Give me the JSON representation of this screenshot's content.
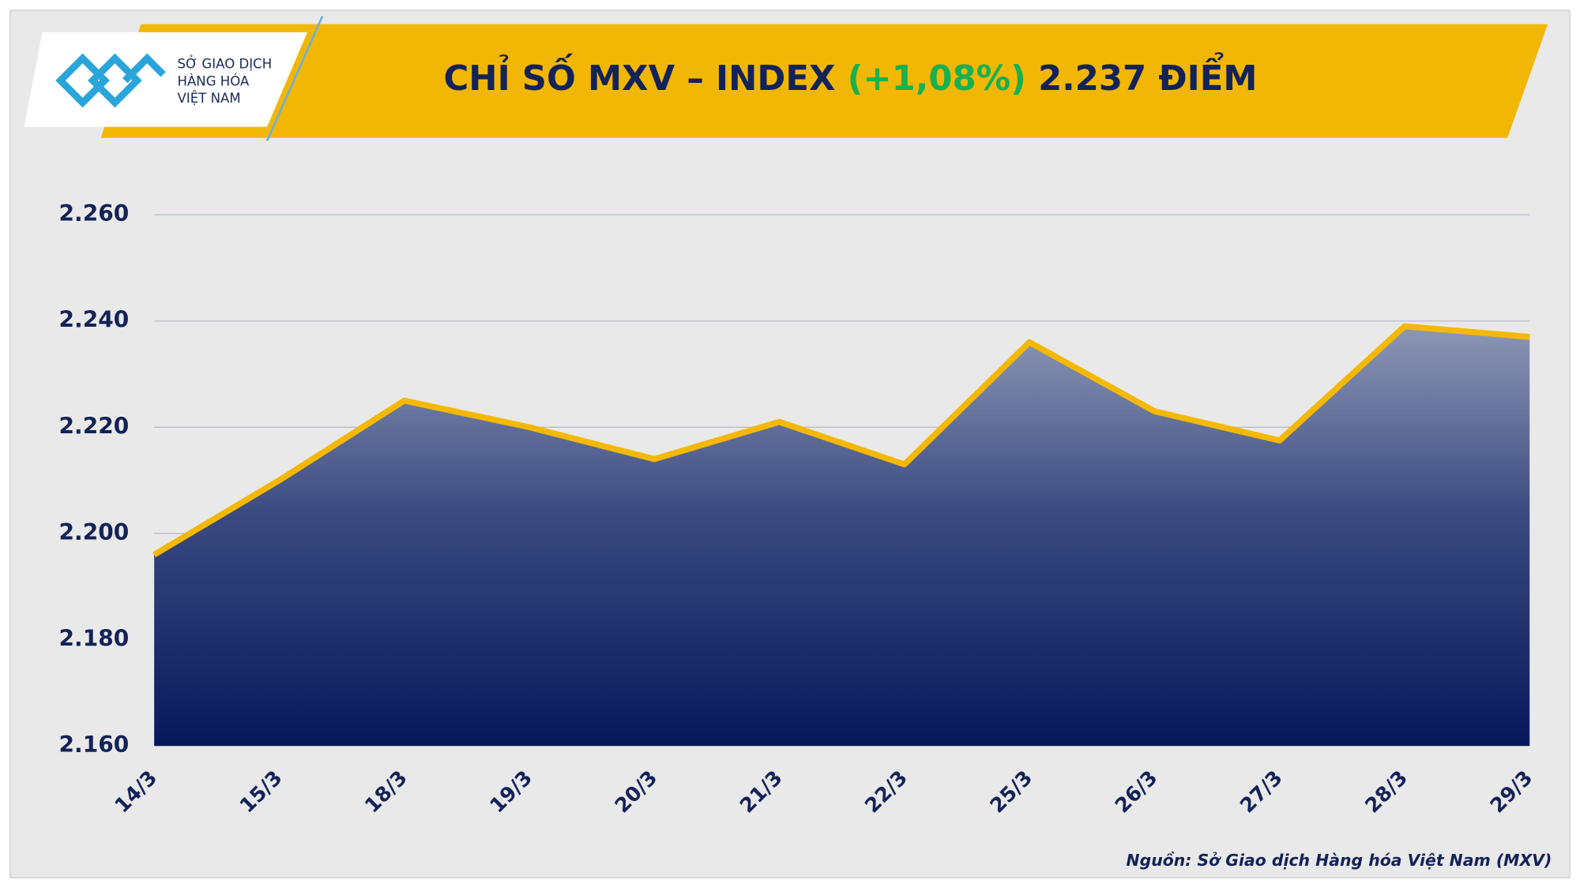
{
  "header": {
    "logo_lines": [
      "SỞ GIAO DỊCH",
      "HÀNG HÓA",
      "VIỆT NAM"
    ]
  },
  "chart_data": {
    "type": "area",
    "title": "CHỈ SỐ MXV – INDEX",
    "title_change": "(+1,08%)",
    "title_value": "2.237 ĐIỂM",
    "categories": [
      "14/3",
      "15/3",
      "18/3",
      "19/3",
      "20/3",
      "21/3",
      "22/3",
      "25/3",
      "26/3",
      "27/3",
      "28/3",
      "29/3"
    ],
    "values": [
      2196,
      2210,
      2225,
      2220,
      2214,
      2221,
      2213,
      2236,
      2223,
      2217.5,
      2239,
      2237
    ],
    "color": "#f5b800",
    "ylim": [
      2160,
      2272
    ],
    "yticks": [
      {
        "value": 2160,
        "label": "2.160"
      },
      {
        "value": 2180,
        "label": "2.180"
      },
      {
        "value": 2200,
        "label": "2.200"
      },
      {
        "value": 2220,
        "label": "2.220"
      },
      {
        "value": 2240,
        "label": "2.240"
      },
      {
        "value": 2260,
        "label": "2.260"
      }
    ],
    "grid": true,
    "source": "Nguồn: Sở Giao dịch Hàng hóa Việt Nam (MXV)"
  }
}
